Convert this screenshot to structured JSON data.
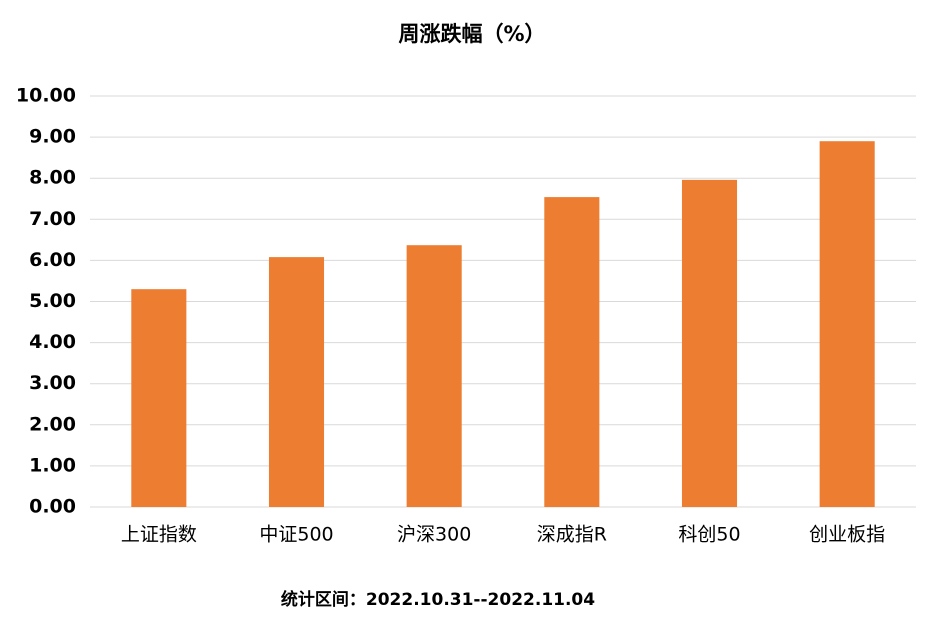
{
  "chart_data": {
    "type": "bar",
    "title": "周涨跌幅（%）",
    "categories": [
      "上证指数",
      "中证500",
      "沪深300",
      "深成指R",
      "科创50",
      "创业板指"
    ],
    "values": [
      5.3,
      6.08,
      6.37,
      7.54,
      7.96,
      8.9
    ],
    "color": "#ed7d31",
    "ylim": [
      0,
      10
    ],
    "yticks": [
      {
        "value": 0,
        "label": "0.00"
      },
      {
        "value": 1,
        "label": "1.00"
      },
      {
        "value": 2,
        "label": "2.00"
      },
      {
        "value": 3,
        "label": "3.00"
      },
      {
        "value": 4,
        "label": "4.00"
      },
      {
        "value": 5,
        "label": "5.00"
      },
      {
        "value": 6,
        "label": "6.00"
      },
      {
        "value": 7,
        "label": "7.00"
      },
      {
        "value": 8,
        "label": "8.00"
      },
      {
        "value": 9,
        "label": "9.00"
      },
      {
        "value": 10,
        "label": "10.00"
      }
    ],
    "grid": true,
    "footnote": "统计区间：2022.10.31--2022.11.04"
  }
}
